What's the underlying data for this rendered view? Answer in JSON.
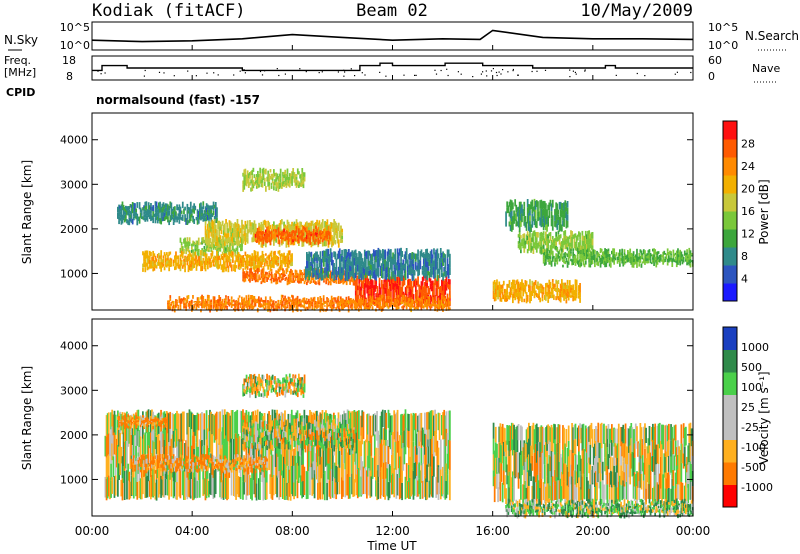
{
  "header": {
    "station": "Kodiak (fitACF)",
    "beam": "Beam 02",
    "date": "10/May/2009"
  },
  "top_panel": {
    "left_label": "N.Sky",
    "left_ticks": [
      "10^5",
      "10^0"
    ],
    "right_label": "N.Search",
    "right_ticks": [
      "10^5",
      "10^0"
    ]
  },
  "freq_panel": {
    "left_label_1": "Freq.",
    "left_label_2": "[MHz]",
    "left_ticks": [
      "18",
      "8"
    ],
    "right_label": "Nave",
    "right_ticks": [
      "60",
      "0"
    ],
    "cpid_label": "CPID"
  },
  "mode_label": "normalsound (fast) -157",
  "x_axis": {
    "label": "Time UT",
    "ticks": [
      "00:00",
      "04:00",
      "08:00",
      "12:00",
      "16:00",
      "20:00",
      "00:00"
    ]
  },
  "power_panel": {
    "ylabel": "Slant Range [km]",
    "yticks": [
      "1000",
      "2000",
      "3000",
      "4000"
    ],
    "colorbar_label": "Power [dB]",
    "colorbar_ticks": [
      "4",
      "8",
      "12",
      "16",
      "20",
      "24",
      "28"
    ]
  },
  "velocity_panel": {
    "ylabel": "Slant Range [km]",
    "yticks": [
      "1000",
      "2000",
      "3000",
      "4000"
    ],
    "colorbar_label": "Velocity [m s⁻¹]",
    "colorbar_ticks": [
      "1000",
      "500",
      "100",
      "25",
      "-25",
      "-100",
      "-500",
      "-1000"
    ]
  },
  "chart_data": [
    {
      "type": "line",
      "title": "N.Sky / N.Search",
      "xlabel": "Time UT",
      "x_hours": [
        0,
        2,
        4,
        6,
        8,
        10,
        12,
        14,
        15.5,
        16,
        18,
        20,
        22,
        24
      ],
      "series": [
        {
          "name": "N.Sky",
          "values": [
            0.35,
            0.3,
            0.33,
            0.4,
            0.55,
            0.45,
            0.35,
            0.4,
            0.38,
            0.7,
            0.45,
            0.4,
            0.4,
            0.38
          ]
        }
      ],
      "ylim": [
        0,
        1
      ]
    },
    {
      "type": "line",
      "title": "Freq. [MHz] / Nave",
      "x_hours": [
        0,
        0.4,
        0.4,
        1.4,
        1.4,
        6.0,
        6.0,
        10.7,
        10.7,
        11.5,
        11.5,
        12.0,
        12.0,
        14.1,
        14.1,
        15.6,
        15.6,
        17.6,
        17.6,
        20.5,
        20.5,
        20.9,
        20.9,
        24
      ],
      "freq_values": [
        12,
        12,
        14,
        14,
        13,
        13,
        12,
        12,
        14,
        14,
        15,
        15,
        14,
        14,
        15,
        15,
        14,
        14,
        13,
        13,
        14,
        14,
        13,
        13
      ],
      "ylim": [
        8,
        18
      ],
      "nave_range": [
        0,
        60
      ]
    },
    {
      "type": "heatmap",
      "title": "Power [dB]",
      "xlabel": "Time UT",
      "ylabel": "Slant Range [km]",
      "xlim_hours": [
        0,
        24
      ],
      "ylim_km": [
        180,
        4600
      ],
      "colorbar_range": [
        0,
        30
      ],
      "data_gap_hours": [
        14.3,
        15.9
      ],
      "bands": [
        {
          "t0": 1.0,
          "t1": 5.0,
          "r0": 2150,
          "r1": 2550,
          "v": 8
        },
        {
          "t0": 3.5,
          "t1": 6.0,
          "r0": 1450,
          "r1": 1750,
          "v": 14
        },
        {
          "t0": 4.5,
          "t1": 10.0,
          "r0": 1650,
          "r1": 2150,
          "v": 17
        },
        {
          "t0": 6.5,
          "t1": 9.5,
          "r0": 1700,
          "r1": 2000,
          "v": 25
        },
        {
          "t0": 2.0,
          "t1": 8.0,
          "r0": 1100,
          "r1": 1450,
          "v": 20
        },
        {
          "t0": 6.0,
          "t1": 11.0,
          "r0": 800,
          "r1": 1050,
          "v": 24
        },
        {
          "t0": 10.5,
          "t1": 14.3,
          "r0": 300,
          "r1": 900,
          "v": 27
        },
        {
          "t0": 8.5,
          "t1": 14.3,
          "r0": 900,
          "r1": 1500,
          "v": 7
        },
        {
          "t0": 3.0,
          "t1": 14.3,
          "r0": 200,
          "r1": 450,
          "v": 23
        },
        {
          "t0": 6.0,
          "t1": 8.5,
          "r0": 2900,
          "r1": 3300,
          "v": 15
        },
        {
          "t0": 17.0,
          "t1": 20.0,
          "r0": 1500,
          "r1": 1900,
          "v": 14
        },
        {
          "t0": 18.0,
          "t1": 24.0,
          "r0": 1200,
          "r1": 1500,
          "v": 12
        },
        {
          "t0": 16.0,
          "t1": 19.5,
          "r0": 400,
          "r1": 800,
          "v": 20
        },
        {
          "t0": 16.5,
          "t1": 19.0,
          "r0": 2000,
          "r1": 2600,
          "v": 10
        }
      ]
    },
    {
      "type": "heatmap",
      "title": "Velocity [m s⁻¹]",
      "xlabel": "Time UT",
      "ylabel": "Slant Range [km]",
      "xlim_hours": [
        0,
        24
      ],
      "ylim_km": [
        180,
        4600
      ],
      "colorbar_range": [
        -1000,
        1000
      ],
      "data_gap_hours": [
        14.3,
        15.9
      ],
      "bands": [
        {
          "t0": 0.5,
          "t1": 14.3,
          "r0": 600,
          "r1": 2500,
          "v": 0
        },
        {
          "t0": 6.0,
          "t1": 10.5,
          "r0": 1700,
          "r1": 2300,
          "v": 5
        },
        {
          "t0": 1.5,
          "t1": 7.0,
          "r0": 1200,
          "r1": 1500,
          "v": -110
        },
        {
          "t0": 1.0,
          "t1": 3.0,
          "r0": 2200,
          "r1": 2400,
          "v": -150
        },
        {
          "t0": 16.0,
          "t1": 24.0,
          "r0": 500,
          "r1": 2200,
          "v": 0
        },
        {
          "t0": 16.5,
          "t1": 24.0,
          "r0": 200,
          "r1": 500,
          "v": 60
        },
        {
          "t0": 6.0,
          "t1": 8.5,
          "r0": 2900,
          "r1": 3300,
          "v": -10
        }
      ]
    }
  ],
  "colors": {
    "power_scale": [
      "#1a1aff",
      "#2c55bf",
      "#2f8a8a",
      "#3ca63c",
      "#7ac83a",
      "#c8c83a",
      "#f2b000",
      "#ff8a00",
      "#ff5a00",
      "#ff1010"
    ],
    "velocity_scale": [
      "#ff0000",
      "#ff7a00",
      "#ffb020",
      "#c0c0c0",
      "#c0c0c0",
      "#4ad04a",
      "#2f8a4a",
      "#1a40c0"
    ]
  }
}
